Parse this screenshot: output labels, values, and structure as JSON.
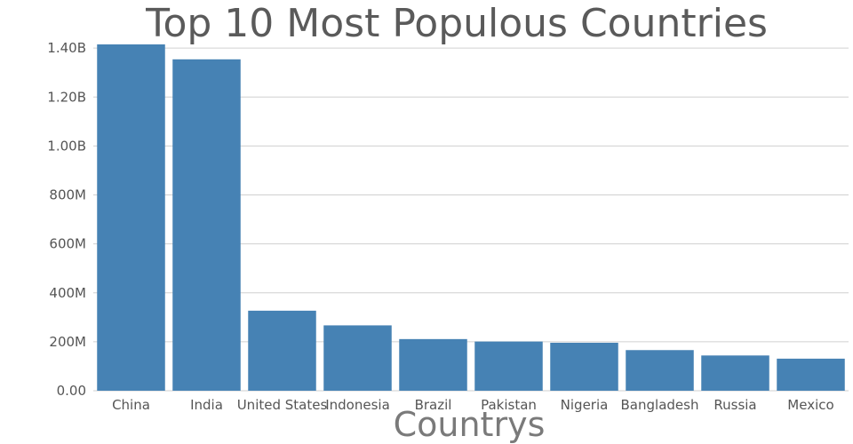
{
  "chart_data": {
    "type": "bar",
    "title": "Top 10 Most Populous Countries",
    "xlabel": "Countrys",
    "ylabel": "",
    "categories": [
      "China",
      "India",
      "United States",
      "Indonesia",
      "Brazil",
      "Pakistan",
      "Nigeria",
      "Bangladesh",
      "Russia",
      "Mexico"
    ],
    "values": [
      1415000000,
      1354000000,
      327000000,
      267000000,
      211000000,
      201000000,
      196000000,
      166000000,
      144000000,
      131000000
    ],
    "ylim": [
      0,
      1415000000
    ],
    "yticks": [
      0,
      200000000,
      400000000,
      600000000,
      800000000,
      1000000000,
      1200000000,
      1400000000
    ],
    "ytick_labels": [
      "0.00",
      "200M",
      "400M",
      "600M",
      "800M",
      "1.00B",
      "1.20B",
      "1.40B"
    ],
    "grid": true,
    "legend": false,
    "colors": {
      "bar": "#4682b4"
    }
  }
}
